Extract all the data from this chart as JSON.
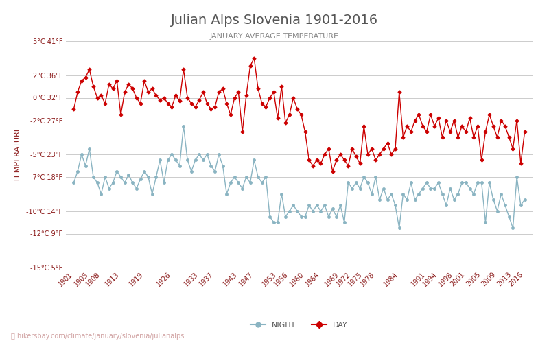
{
  "title": "Julian Alps Slovenia 1901-2016",
  "subtitle": "JANUARY AVERAGE TEMPERATURE",
  "xlabel": "",
  "ylabel": "TEMPERATURE",
  "watermark": "hikersbay.com/climate/january/slovenia/julianalps",
  "ylim_c": [
    -15,
    5
  ],
  "yticks_c": [
    -15,
    -12,
    -10,
    -7,
    -5,
    -2,
    0,
    2,
    5
  ],
  "ytick_labels": [
    "-15°C 5°F",
    "-12°C 9°F",
    "-10°C 14°F",
    "-7°C 18°F",
    "-5°C 23°F",
    "-2°C 27°F",
    "0°C 32°F",
    "2°C 36°F",
    "5°C 41°F"
  ],
  "xticks": [
    1901,
    1905,
    1908,
    1913,
    1919,
    1926,
    1933,
    1937,
    1943,
    1947,
    1953,
    1956,
    1960,
    1964,
    1969,
    1972,
    1975,
    1978,
    1984,
    1991,
    1994,
    1998,
    2001,
    2005,
    2009,
    2013,
    2016
  ],
  "day_color": "#cc0000",
  "night_color": "#8ab4c2",
  "bg_color": "#ffffff",
  "grid_color": "#cccccc",
  "title_color": "#555555",
  "subtitle_color": "#888888",
  "axis_label_color": "#8b1a1a",
  "tick_color": "#8b1a1a",
  "years": [
    1901,
    1902,
    1903,
    1904,
    1905,
    1906,
    1907,
    1908,
    1909,
    1910,
    1911,
    1912,
    1913,
    1914,
    1915,
    1916,
    1917,
    1918,
    1919,
    1920,
    1921,
    1922,
    1923,
    1924,
    1925,
    1926,
    1927,
    1928,
    1929,
    1930,
    1931,
    1932,
    1933,
    1934,
    1935,
    1936,
    1937,
    1938,
    1939,
    1940,
    1941,
    1942,
    1943,
    1944,
    1945,
    1946,
    1947,
    1948,
    1949,
    1950,
    1951,
    1952,
    1953,
    1954,
    1955,
    1956,
    1957,
    1958,
    1959,
    1960,
    1961,
    1962,
    1963,
    1964,
    1965,
    1966,
    1967,
    1968,
    1969,
    1970,
    1971,
    1972,
    1973,
    1974,
    1975,
    1976,
    1977,
    1978,
    1979,
    1980,
    1981,
    1982,
    1983,
    1984,
    1985,
    1986,
    1987,
    1988,
    1989,
    1990,
    1991,
    1992,
    1993,
    1994,
    1995,
    1996,
    1997,
    1998,
    1999,
    2000,
    2001,
    2002,
    2003,
    2004,
    2005,
    2006,
    2007,
    2008,
    2009,
    2010,
    2011,
    2012,
    2013,
    2014,
    2015,
    2016
  ],
  "day_temps": [
    -1.0,
    0.5,
    1.5,
    1.8,
    2.5,
    1.0,
    0.0,
    0.2,
    -0.5,
    1.2,
    0.8,
    1.5,
    -1.5,
    0.5,
    1.2,
    0.8,
    0.0,
    -0.5,
    1.5,
    0.5,
    0.8,
    0.2,
    -0.2,
    0.0,
    -0.5,
    -0.8,
    0.2,
    -0.3,
    2.5,
    0.0,
    -0.5,
    -0.8,
    -0.2,
    0.5,
    -0.5,
    -1.0,
    -0.8,
    0.5,
    0.8,
    -0.5,
    -1.5,
    0.0,
    0.5,
    -3.0,
    0.2,
    2.8,
    3.5,
    0.8,
    -0.5,
    -0.8,
    0.0,
    0.5,
    -1.8,
    1.0,
    -2.2,
    -1.5,
    0.0,
    -1.0,
    -1.5,
    -3.0,
    -5.5,
    -6.0,
    -5.5,
    -5.8,
    -5.0,
    -4.5,
    -6.5,
    -5.5,
    -5.0,
    -5.5,
    -6.0,
    -4.5,
    -5.2,
    -5.8,
    -2.5,
    -5.0,
    -4.5,
    -5.5,
    -5.0,
    -4.5,
    -4.0,
    -5.0,
    -4.5,
    0.5,
    -3.5,
    -2.5,
    -3.0,
    -2.0,
    -1.5,
    -2.5,
    -3.0,
    -1.5,
    -2.5,
    -1.8,
    -3.5,
    -2.0,
    -3.0,
    -2.0,
    -3.5,
    -2.5,
    -3.0,
    -1.8,
    -3.5,
    -2.5,
    -5.5,
    -3.0,
    -1.5,
    -2.5,
    -3.5,
    -2.0,
    -2.5,
    -3.5,
    -4.5,
    -2.0,
    -5.8,
    -3.0
  ],
  "night_temps": [
    -7.5,
    -6.5,
    -5.0,
    -6.0,
    -4.5,
    -7.0,
    -7.5,
    -8.5,
    -7.0,
    -8.0,
    -7.5,
    -6.5,
    -7.0,
    -7.5,
    -6.8,
    -7.5,
    -8.0,
    -7.2,
    -6.5,
    -7.0,
    -8.5,
    -7.0,
    -5.5,
    -7.5,
    -5.5,
    -5.0,
    -5.5,
    -6.0,
    -2.5,
    -5.5,
    -6.5,
    -5.5,
    -5.0,
    -5.5,
    -5.0,
    -6.0,
    -6.5,
    -5.0,
    -6.0,
    -8.5,
    -7.5,
    -7.0,
    -7.5,
    -8.0,
    -7.0,
    -7.5,
    -5.5,
    -7.0,
    -7.5,
    -7.0,
    -10.5,
    -11.0,
    -11.0,
    -8.5,
    -10.5,
    -10.0,
    -9.5,
    -10.0,
    -10.5,
    -10.5,
    -9.5,
    -10.0,
    -9.5,
    -10.0,
    -9.5,
    -10.5,
    -9.8,
    -10.5,
    -9.5,
    -11.0,
    -7.5,
    -8.0,
    -7.5,
    -8.0,
    -7.0,
    -7.5,
    -8.5,
    -7.0,
    -9.0,
    -8.0,
    -9.0,
    -8.5,
    -9.5,
    -11.5,
    -8.5,
    -9.0,
    -7.5,
    -9.0,
    -8.5,
    -8.0,
    -7.5,
    -8.0,
    -8.0,
    -7.5,
    -8.5,
    -9.5,
    -8.0,
    -9.0,
    -8.5,
    -7.5,
    -7.5,
    -8.0,
    -8.5,
    -7.5,
    -7.5,
    -11.0,
    -7.5,
    -9.0,
    -10.0,
    -8.5,
    -9.5,
    -10.5,
    -11.5,
    -7.0,
    -9.5,
    -9.0
  ]
}
